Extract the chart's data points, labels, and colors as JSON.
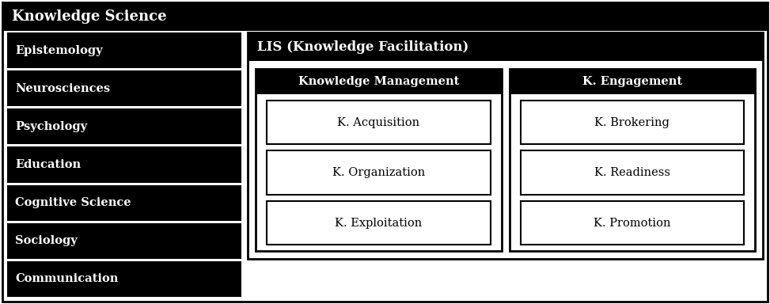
{
  "title": "Knowledge Science",
  "left_items": [
    "Epistemology",
    "Neurosciences",
    "Psychology",
    "Education",
    "Cognitive Science",
    "Sociology",
    "Communication"
  ],
  "lis_label": "LIS (Knowledge Facilitation)",
  "km_label": "Knowledge Management",
  "ke_label": "K. Engagement",
  "km_items": [
    "K. Acquisition",
    "K. Organization",
    "K. Exploitation"
  ],
  "ke_items": [
    "K. Brokering",
    "K. Readiness",
    "K. Promotion"
  ],
  "black": "#000000",
  "white": "#ffffff",
  "outer_border_lw": 2,
  "fig_w": 9.73,
  "fig_h": 3.84,
  "dpi": 100
}
